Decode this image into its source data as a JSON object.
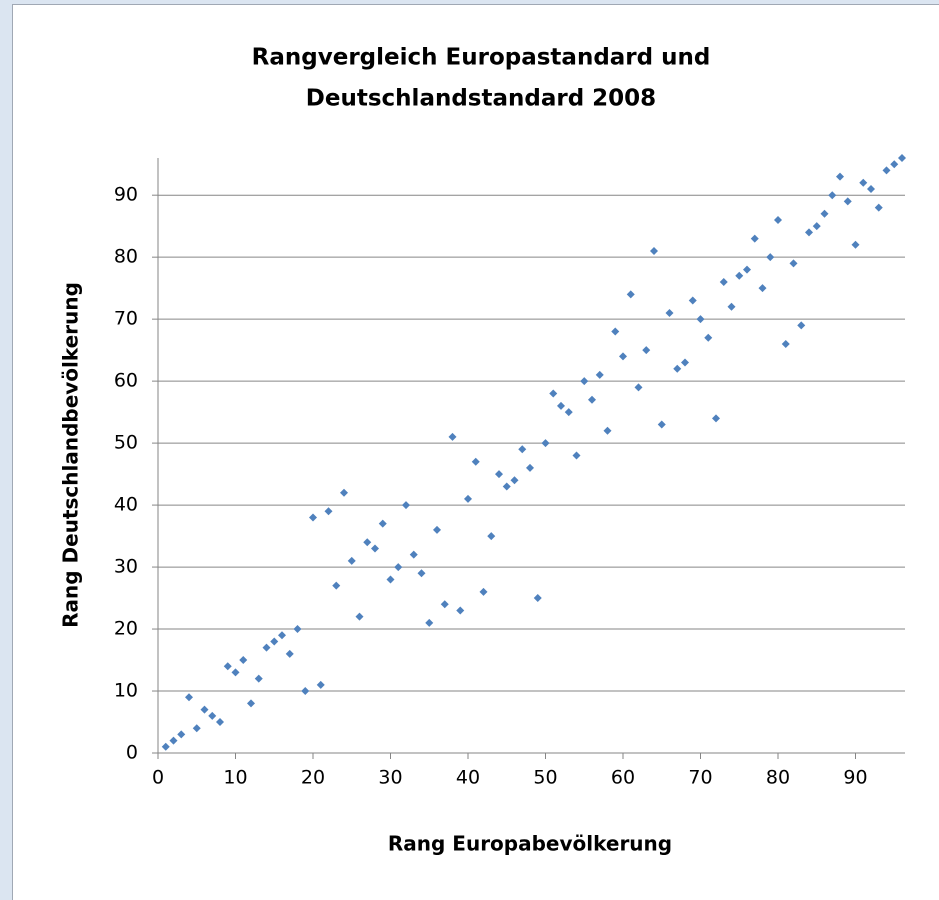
{
  "chart_data": {
    "type": "scatter",
    "title": [
      "Rangvergleich Europastandard  und",
      "Deutschlandstandard  2008"
    ],
    "x_label": "Rang Europabevölkerung",
    "y_label": "Rang Deutschlandbevölkerung",
    "color": "#4f81bd",
    "grid": true,
    "xlim": [
      0,
      96
    ],
    "ylim": [
      0,
      96
    ],
    "xticks": [
      0,
      10,
      20,
      30,
      40,
      50,
      60,
      70,
      80,
      90
    ],
    "yticks": [
      0,
      10,
      20,
      30,
      40,
      50,
      60,
      70,
      80,
      90
    ],
    "x": [
      1,
      2,
      3,
      4,
      5,
      6,
      7,
      8,
      9,
      10,
      11,
      12,
      13,
      14,
      15,
      16,
      17,
      18,
      19,
      20,
      21,
      22,
      23,
      24,
      25,
      26,
      27,
      28,
      29,
      30,
      31,
      32,
      33,
      34,
      35,
      36,
      37,
      38,
      39,
      40,
      41,
      42,
      43,
      44,
      45,
      46,
      47,
      48,
      49,
      50,
      51,
      52,
      53,
      54,
      55,
      56,
      57,
      58,
      59,
      60,
      61,
      62,
      63,
      64,
      65,
      66,
      67,
      68,
      69,
      70,
      71,
      72,
      73,
      74,
      75,
      76,
      77,
      78,
      79,
      80,
      81,
      82,
      83,
      84,
      85,
      86,
      87,
      88,
      89,
      90,
      91,
      92,
      93,
      94,
      95,
      96
    ],
    "values": [
      1,
      2,
      3,
      9,
      4,
      7,
      6,
      5,
      14,
      13,
      15,
      8,
      12,
      17,
      18,
      19,
      16,
      20,
      10,
      38,
      11,
      39,
      27,
      42,
      31,
      22,
      34,
      33,
      37,
      28,
      30,
      40,
      32,
      29,
      21,
      36,
      24,
      51,
      23,
      41,
      47,
      26,
      35,
      45,
      43,
      44,
      49,
      46,
      25,
      50,
      58,
      56,
      55,
      48,
      60,
      57,
      61,
      52,
      68,
      64,
      74,
      59,
      65,
      81,
      53,
      71,
      62,
      63,
      73,
      70,
      67,
      54,
      76,
      72,
      77,
      78,
      83,
      75,
      80,
      86,
      66,
      79,
      69,
      84,
      85,
      87,
      90,
      93,
      89,
      82,
      92,
      91,
      88,
      94,
      95,
      96
    ]
  }
}
